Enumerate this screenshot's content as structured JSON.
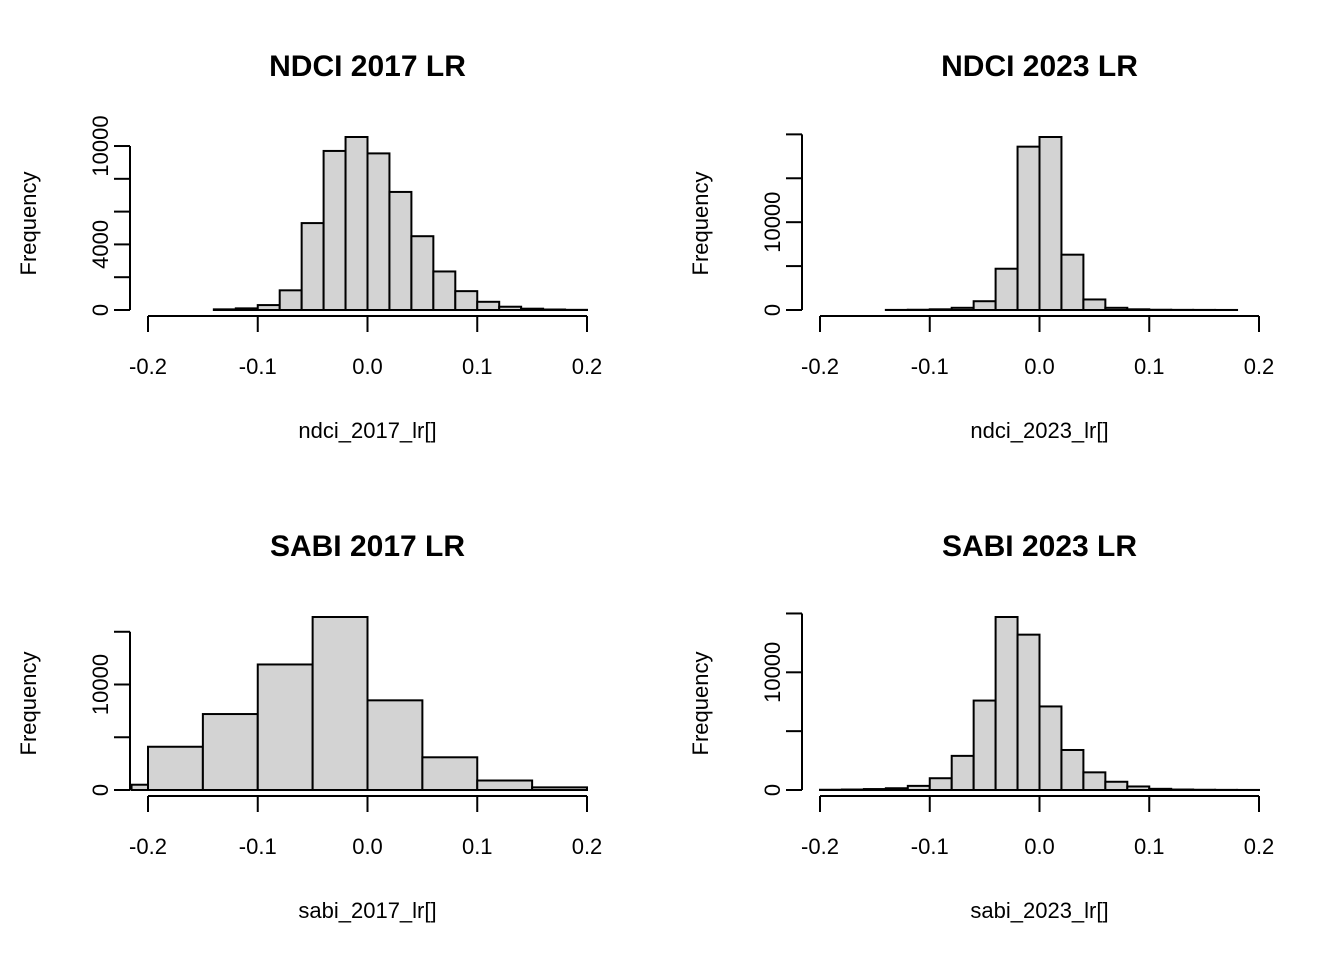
{
  "chart_data": [
    {
      "type": "bar",
      "title": "NDCI 2017 LR",
      "xlabel": "ndci_2017_lr[]",
      "ylabel": "Frequency",
      "xlim": [
        -0.2,
        0.2
      ],
      "x_ticks": [
        -0.2,
        -0.1,
        0.0,
        0.1,
        0.2
      ],
      "x_tick_labels": [
        "-0.2",
        "-0.1",
        "0.0",
        "0.1",
        "0.2"
      ],
      "y_ticks": [
        0,
        2000,
        4000,
        6000,
        8000,
        10000
      ],
      "y_tick_labels": [
        "0",
        "",
        "4000",
        "",
        "",
        "10000"
      ],
      "bin_edges": [
        -0.14,
        -0.12,
        -0.1,
        -0.08,
        -0.06,
        -0.04,
        -0.02,
        0.0,
        0.02,
        0.04,
        0.06,
        0.08,
        0.1,
        0.12,
        0.14,
        0.16,
        0.18,
        0.2
      ],
      "values": [
        40,
        100,
        300,
        1200,
        5300,
        9700,
        10550,
        9550,
        7200,
        4500,
        2350,
        1150,
        500,
        200,
        80,
        30,
        10
      ]
    },
    {
      "type": "bar",
      "title": "NDCI 2023 LR",
      "xlabel": "ndci_2023_lr[]",
      "ylabel": "Frequency",
      "xlim": [
        -0.2,
        0.2
      ],
      "x_ticks": [
        -0.2,
        -0.1,
        0.0,
        0.1,
        0.2
      ],
      "x_tick_labels": [
        "-0.2",
        "-0.1",
        "0.0",
        "0.1",
        "0.2"
      ],
      "y_ticks": [
        0,
        5000,
        10000,
        15000,
        20000
      ],
      "y_tick_labels": [
        "0",
        "",
        "10000",
        "",
        ""
      ],
      "bin_edges": [
        -0.14,
        -0.12,
        -0.1,
        -0.08,
        -0.06,
        -0.04,
        -0.02,
        0.0,
        0.02,
        0.04,
        0.06,
        0.08,
        0.1,
        0.12,
        0.14,
        0.16,
        0.18
      ],
      "values": [
        10,
        30,
        80,
        250,
        1000,
        4700,
        18600,
        19700,
        6300,
        1200,
        250,
        80,
        30,
        15,
        10,
        5
      ]
    },
    {
      "type": "bar",
      "title": "SABI 2017 LR",
      "xlabel": "sabi_2017_lr[]",
      "ylabel": "Frequency",
      "xlim": [
        -0.2,
        0.2
      ],
      "x_ticks": [
        -0.2,
        -0.1,
        0.0,
        0.1,
        0.2
      ],
      "x_tick_labels": [
        "-0.2",
        "-0.1",
        "0.0",
        "0.1",
        "0.2"
      ],
      "y_ticks": [
        0,
        5000,
        10000,
        15000
      ],
      "y_tick_labels": [
        "0",
        "",
        "10000",
        ""
      ],
      "bin_edges": [
        -0.215,
        -0.2,
        -0.15,
        -0.1,
        -0.05,
        0.0,
        0.05,
        0.1,
        0.15,
        0.2
      ],
      "values": [
        500,
        4100,
        7200,
        11900,
        16400,
        8500,
        3100,
        900,
        250
      ]
    },
    {
      "type": "bar",
      "title": "SABI 2023 LR",
      "xlabel": "sabi_2023_lr[]",
      "ylabel": "Frequency",
      "xlim": [
        -0.2,
        0.2
      ],
      "x_ticks": [
        -0.2,
        -0.1,
        0.0,
        0.1,
        0.2
      ],
      "x_tick_labels": [
        "-0.2",
        "-0.1",
        "0.0",
        "0.1",
        "0.2"
      ],
      "y_ticks": [
        0,
        5000,
        10000,
        15000
      ],
      "y_tick_labels": [
        "0",
        "",
        "10000",
        ""
      ],
      "bin_edges": [
        -0.2,
        -0.18,
        -0.16,
        -0.14,
        -0.12,
        -0.1,
        -0.08,
        -0.06,
        -0.04,
        -0.02,
        0.0,
        0.02,
        0.04,
        0.06,
        0.08,
        0.1,
        0.12,
        0.14,
        0.16,
        0.18,
        0.2
      ],
      "values": [
        20,
        40,
        80,
        150,
        350,
        1000,
        2900,
        7600,
        14700,
        13200,
        7100,
        3400,
        1500,
        700,
        300,
        100,
        40,
        20,
        10,
        5
      ]
    }
  ]
}
